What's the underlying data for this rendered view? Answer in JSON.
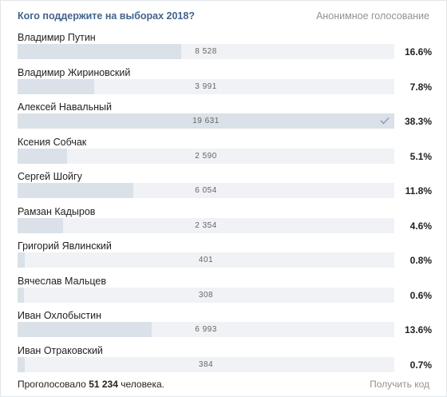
{
  "poll": {
    "title": "Кого поддержите на выборах 2018?",
    "anonymous_label": "Анонимное голосование",
    "options": [
      {
        "label": "Владимир Путин",
        "count": "8 528",
        "percent": "16.6%",
        "share": 0.434,
        "voted": false
      },
      {
        "label": "Владимир Жириновский",
        "count": "3 991",
        "percent": "7.8%",
        "share": 0.203,
        "voted": false
      },
      {
        "label": "Алексей Навальный",
        "count": "19 631",
        "percent": "38.3%",
        "share": 1.0,
        "voted": true
      },
      {
        "label": "Ксения Собчак",
        "count": "2 590",
        "percent": "5.1%",
        "share": 0.132,
        "voted": false
      },
      {
        "label": "Сергей Шойгу",
        "count": "6 054",
        "percent": "11.8%",
        "share": 0.308,
        "voted": false
      },
      {
        "label": "Рамзан Кадыров",
        "count": "2 354",
        "percent": "4.6%",
        "share": 0.12,
        "voted": false
      },
      {
        "label": "Григорий Явлинский",
        "count": "401",
        "percent": "0.8%",
        "share": 0.02,
        "voted": false
      },
      {
        "label": "Вячеслав Мальцев",
        "count": "308",
        "percent": "0.6%",
        "share": 0.016,
        "voted": false
      },
      {
        "label": "Иван Охлобыстин",
        "count": "6 993",
        "percent": "13.6%",
        "share": 0.356,
        "voted": false
      },
      {
        "label": "Иван Отраковский",
        "count": "384",
        "percent": "0.7%",
        "share": 0.02,
        "voted": false
      }
    ],
    "footer": {
      "voted_prefix": "Проголосовало ",
      "voted_total": "51 234",
      "voted_suffix": " человека.",
      "get_code_label": "Получить код"
    },
    "colors": {
      "fill": "#dae1e8",
      "track": "#f0f2f5",
      "title": "#42648b",
      "check": "#8fa1b4"
    },
    "icons": {
      "voted_marker": "checkmark-icon"
    }
  }
}
